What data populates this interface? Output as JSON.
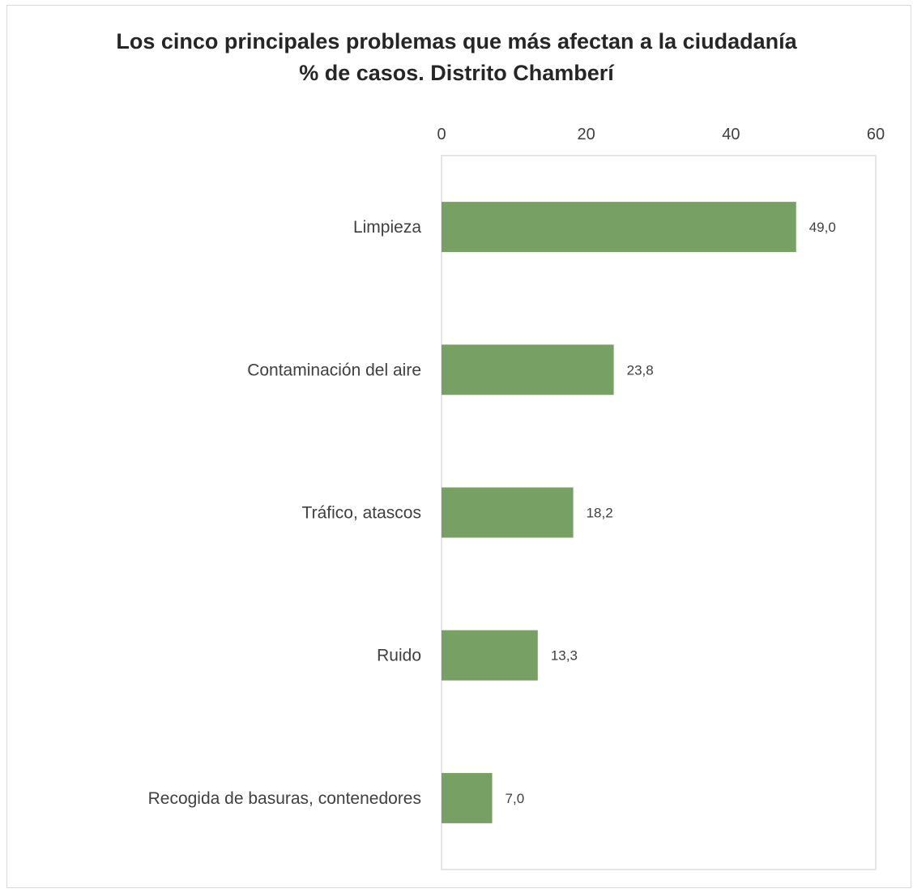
{
  "chart_data": {
    "type": "bar",
    "orientation": "horizontal",
    "title": [
      "Los cinco principales problemas que más afectan a la ciudadanía",
      "% de casos. Distrito Chamberí"
    ],
    "categories": [
      "Limpieza",
      "Contaminación del aire",
      "Tráfico, atascos",
      "Ruido",
      "Recogida de basuras, contenedores"
    ],
    "values": [
      49.0,
      23.8,
      18.2,
      13.3,
      7.0
    ],
    "value_labels": [
      "49,0",
      "23,8",
      "18,2",
      "13,3",
      "7,0"
    ],
    "xlim": [
      0,
      60
    ],
    "x_ticks": [
      "0",
      "20",
      "40",
      "60"
    ],
    "x_axis_position": "top",
    "grid": false,
    "bar_color": "#77a064",
    "axis_color": "#d9d9d9",
    "text_color": "#404040"
  }
}
